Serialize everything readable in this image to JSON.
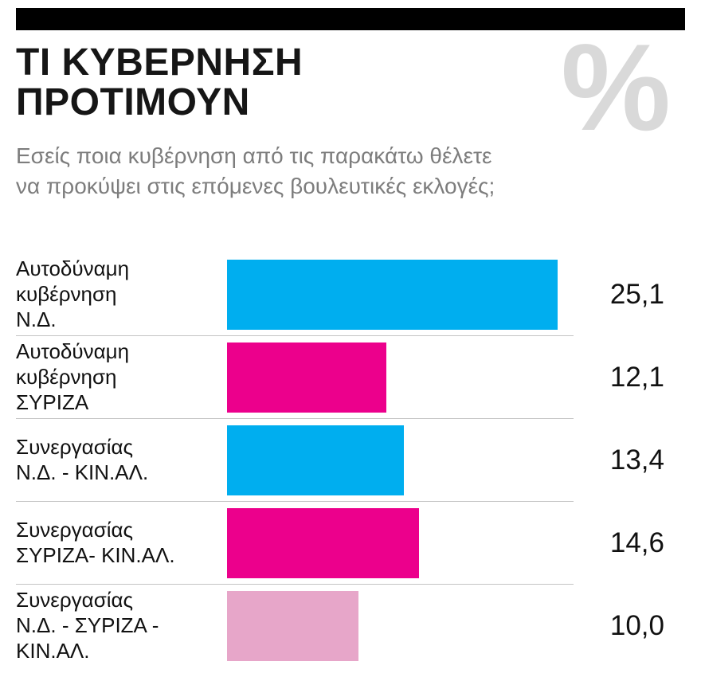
{
  "header": {
    "title": "ΤΙ ΚΥΒΕΡΝΗΣΗ\nΠΡΟΤΙΜΟΥΝ",
    "percent_symbol": "%",
    "subtitle": "Εσείς ποια κυβέρνηση από τις παρακάτω θέλετε\nνα προκύψει στις επόμενες βουλευτικές εκλογές;"
  },
  "colors": {
    "nd_blue": "#00aeef",
    "syriza_magenta": "#ec008c",
    "coalition_pink": "#e7a6c9",
    "title_black": "#161616",
    "subtitle_gray": "#7d7d7d",
    "percent_gray": "#d9d9d9",
    "divider_gray": "#c4c4c4"
  },
  "chart_data": {
    "type": "bar",
    "orientation": "horizontal",
    "title": "ΤΙ ΚΥΒΕΡΝΗΣΗ ΠΡΟΤΙΜΟΥΝ",
    "unit": "%",
    "question": "Εσείς ποια κυβέρνηση από τις παρακάτω θέλετε να προκύψει στις επόμενες βουλευτικές εκλογές;",
    "categories": [
      "Αυτοδύναμη κυβέρνηση Ν.Δ.",
      "Αυτοδύναμη κυβέρνηση ΣΥΡΙΖΑ",
      "Συνεργασίας Ν.Δ. - ΚΙΝ.ΑΛ.",
      "Συνεργασίας ΣΥΡΙΖΑ- ΚΙΝ.ΑΛ.",
      "Συνεργασίας Ν.Δ. - ΣΥΡΙΖΑ - ΚΙΝ.ΑΛ."
    ],
    "category_display": [
      "Αυτοδύναμη\nκυβέρνηση\nΝ.Δ.",
      "Αυτοδύναμη\nκυβέρνηση\nΣΥΡΙΖΑ",
      "Συνεργασίας\nΝ.Δ. - ΚΙΝ.ΑΛ.",
      "Συνεργασίας\nΣΥΡΙΖΑ- ΚΙΝ.ΑΛ.",
      "Συνεργασίας\nΝ.Δ. - ΣΥΡΙΖΑ -\nΚΙΝ.ΑΛ."
    ],
    "values": [
      25.1,
      12.1,
      13.4,
      14.6,
      10.0
    ],
    "value_labels": [
      "25,1",
      "12,1",
      "13,4",
      "14,6",
      "10,0"
    ],
    "bar_colors": [
      "#00aeef",
      "#ec008c",
      "#00aeef",
      "#ec008c",
      "#e7a6c9"
    ],
    "xlim": [
      0,
      26
    ],
    "grid": false,
    "legend": "none"
  }
}
